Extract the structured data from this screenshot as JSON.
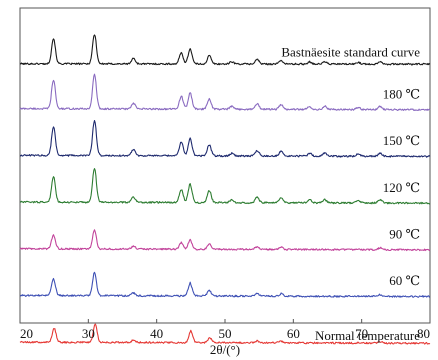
{
  "chart_data": {
    "type": "line",
    "title": "",
    "xlabel": "2θ/(°)",
    "ylabel": "",
    "xlim": [
      20,
      80
    ],
    "xticks": [
      "20",
      "30",
      "40",
      "50",
      "60",
      "70",
      "80"
    ],
    "y_ticks_shown": false,
    "grid": false,
    "legend": "none",
    "stacked_offsets": true,
    "series": [
      {
        "name": "Bastnäesite standard curve",
        "color": "#1a1a1a",
        "baseline": 0.02,
        "peaks": [
          {
            "x": 24.9,
            "h": 0.55
          },
          {
            "x": 30.9,
            "h": 0.64
          },
          {
            "x": 36.6,
            "h": 0.12
          },
          {
            "x": 43.6,
            "h": 0.24
          },
          {
            "x": 44.9,
            "h": 0.33
          },
          {
            "x": 47.7,
            "h": 0.18
          },
          {
            "x": 51.0,
            "h": 0.05
          },
          {
            "x": 54.7,
            "h": 0.1
          },
          {
            "x": 58.2,
            "h": 0.08
          },
          {
            "x": 62.4,
            "h": 0.05
          },
          {
            "x": 64.6,
            "h": 0.05
          },
          {
            "x": 69.5,
            "h": 0.04
          },
          {
            "x": 72.7,
            "h": 0.06
          }
        ]
      },
      {
        "name": "180 ℃",
        "color": "#8a6bc0",
        "baseline": 0.06,
        "peaks": [
          {
            "x": 24.9,
            "h": 0.62
          },
          {
            "x": 30.9,
            "h": 0.74
          },
          {
            "x": 36.6,
            "h": 0.12
          },
          {
            "x": 43.6,
            "h": 0.28
          },
          {
            "x": 44.9,
            "h": 0.35
          },
          {
            "x": 47.7,
            "h": 0.22
          },
          {
            "x": 51.0,
            "h": 0.06
          },
          {
            "x": 54.7,
            "h": 0.12
          },
          {
            "x": 58.2,
            "h": 0.1
          },
          {
            "x": 62.4,
            "h": 0.06
          },
          {
            "x": 64.6,
            "h": 0.07
          },
          {
            "x": 69.5,
            "h": 0.05
          },
          {
            "x": 72.7,
            "h": 0.07
          }
        ]
      },
      {
        "name": "150 ℃",
        "color": "#1e2a6e",
        "baseline": 0.06,
        "peaks": [
          {
            "x": 24.9,
            "h": 0.62
          },
          {
            "x": 30.9,
            "h": 0.76
          },
          {
            "x": 36.6,
            "h": 0.14
          },
          {
            "x": 43.6,
            "h": 0.3
          },
          {
            "x": 44.9,
            "h": 0.38
          },
          {
            "x": 47.7,
            "h": 0.24
          },
          {
            "x": 51.0,
            "h": 0.06
          },
          {
            "x": 54.7,
            "h": 0.12
          },
          {
            "x": 58.2,
            "h": 0.1
          },
          {
            "x": 62.4,
            "h": 0.06
          },
          {
            "x": 64.6,
            "h": 0.07
          },
          {
            "x": 69.5,
            "h": 0.05
          },
          {
            "x": 72.7,
            "h": 0.07
          }
        ]
      },
      {
        "name": "120 ℃",
        "color": "#2e7d32",
        "baseline": 0.06,
        "peaks": [
          {
            "x": 24.9,
            "h": 0.55
          },
          {
            "x": 30.9,
            "h": 0.74
          },
          {
            "x": 36.6,
            "h": 0.12
          },
          {
            "x": 43.6,
            "h": 0.28
          },
          {
            "x": 44.9,
            "h": 0.4
          },
          {
            "x": 47.7,
            "h": 0.26
          },
          {
            "x": 51.0,
            "h": 0.06
          },
          {
            "x": 54.7,
            "h": 0.12
          },
          {
            "x": 58.2,
            "h": 0.1
          },
          {
            "x": 62.4,
            "h": 0.06
          },
          {
            "x": 64.6,
            "h": 0.07
          },
          {
            "x": 69.5,
            "h": 0.05
          },
          {
            "x": 72.7,
            "h": 0.07
          }
        ]
      },
      {
        "name": "90 ℃",
        "color": "#c2449b",
        "baseline": 0.06,
        "peaks": [
          {
            "x": 24.9,
            "h": 0.3
          },
          {
            "x": 30.9,
            "h": 0.4
          },
          {
            "x": 36.6,
            "h": 0.06
          },
          {
            "x": 43.6,
            "h": 0.14
          },
          {
            "x": 44.9,
            "h": 0.2
          },
          {
            "x": 47.7,
            "h": 0.12
          },
          {
            "x": 54.7,
            "h": 0.06
          },
          {
            "x": 58.2,
            "h": 0.05
          },
          {
            "x": 72.7,
            "h": 0.04
          }
        ]
      },
      {
        "name": "60 ℃",
        "color": "#3f51b5",
        "baseline": 0.06,
        "peaks": [
          {
            "x": 24.9,
            "h": 0.36
          },
          {
            "x": 30.9,
            "h": 0.5
          },
          {
            "x": 36.6,
            "h": 0.06
          },
          {
            "x": 44.9,
            "h": 0.28
          },
          {
            "x": 47.7,
            "h": 0.12
          },
          {
            "x": 54.7,
            "h": 0.06
          },
          {
            "x": 58.2,
            "h": 0.05
          },
          {
            "x": 72.7,
            "h": 0.04
          }
        ]
      },
      {
        "name": "Normal temperature",
        "color": "#e53935",
        "baseline": 0.06,
        "peaks": [
          {
            "x": 25.0,
            "h": 0.3
          },
          {
            "x": 31.0,
            "h": 0.4
          },
          {
            "x": 36.6,
            "h": 0.05
          },
          {
            "x": 45.0,
            "h": 0.26
          },
          {
            "x": 47.8,
            "h": 0.1
          },
          {
            "x": 54.7,
            "h": 0.04
          },
          {
            "x": 58.2,
            "h": 0.04
          },
          {
            "x": 72.7,
            "h": 0.03
          }
        ]
      }
    ]
  }
}
